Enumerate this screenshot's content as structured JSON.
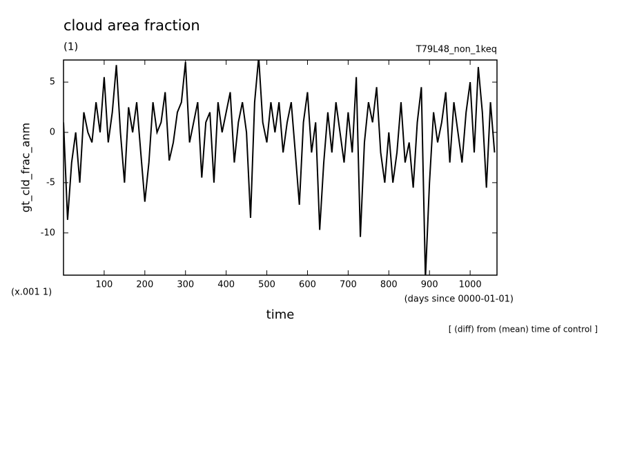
{
  "chart_data": {
    "type": "line",
    "title": "cloud area fraction",
    "subtitle": "(1)",
    "run_label": "T79L48_non_1keq",
    "y_label": "gt_cld_frac_anm",
    "y_unit": "(x.001 1)",
    "x_unit": "(days since 0000-01-01)",
    "x_label": "time",
    "note": "[ (diff) from (mean) time of control ]",
    "color": "#000000",
    "x": [
      0,
      10,
      20,
      30,
      40,
      50,
      60,
      70,
      80,
      90,
      100,
      110,
      120,
      130,
      140,
      150,
      160,
      170,
      180,
      190,
      200,
      210,
      220,
      230,
      240,
      250,
      260,
      270,
      280,
      290,
      300,
      310,
      320,
      330,
      340,
      350,
      360,
      370,
      380,
      390,
      400,
      410,
      420,
      430,
      440,
      450,
      460,
      470,
      480,
      490,
      500,
      510,
      520,
      530,
      540,
      550,
      560,
      570,
      580,
      590,
      600,
      610,
      620,
      630,
      640,
      650,
      660,
      670,
      680,
      690,
      700,
      710,
      720,
      730,
      740,
      750,
      760,
      770,
      780,
      790,
      800,
      810,
      820,
      830,
      840,
      850,
      860,
      870,
      880,
      890,
      900,
      910,
      920,
      930,
      940,
      950,
      960,
      970,
      980,
      990,
      1000,
      1010,
      1020,
      1030,
      1040,
      1050,
      1060
    ],
    "values": [
      1,
      -8.7,
      -3,
      0,
      -5,
      2,
      0,
      -1,
      3,
      0,
      5.5,
      -1,
      2,
      6.7,
      0,
      -5,
      2.5,
      0,
      3,
      -2,
      -6.9,
      -3,
      3,
      0,
      1,
      4,
      -2.8,
      -1,
      2,
      3,
      7,
      -1,
      1,
      3,
      -4.5,
      1,
      2,
      -5,
      3,
      0,
      2,
      4,
      -3,
      1,
      3,
      0,
      -8.5,
      3,
      7.5,
      1,
      -1,
      3,
      0,
      3,
      -2,
      1,
      3,
      -2,
      -7.2,
      1,
      4,
      -2,
      1,
      -9.7,
      -3,
      2,
      -2,
      3,
      0,
      -3,
      2,
      -2,
      5.5,
      -10.4,
      -1,
      3,
      1,
      4.5,
      -2,
      -5,
      0,
      -5,
      -2,
      3,
      -3,
      -1,
      -5.5,
      1,
      4.5,
      -14.5,
      -5,
      2,
      -1,
      1,
      4,
      -3,
      3,
      0,
      -3,
      2,
      5,
      -2,
      6.5,
      2,
      -5.5,
      3,
      -2
    ],
    "xlim": [
      0,
      1066
    ],
    "ylim": [
      -14.2,
      7.2
    ],
    "xticks": [
      100,
      200,
      300,
      400,
      500,
      600,
      700,
      800,
      900,
      1000
    ],
    "yticks": [
      -10,
      -5,
      0,
      5
    ]
  }
}
